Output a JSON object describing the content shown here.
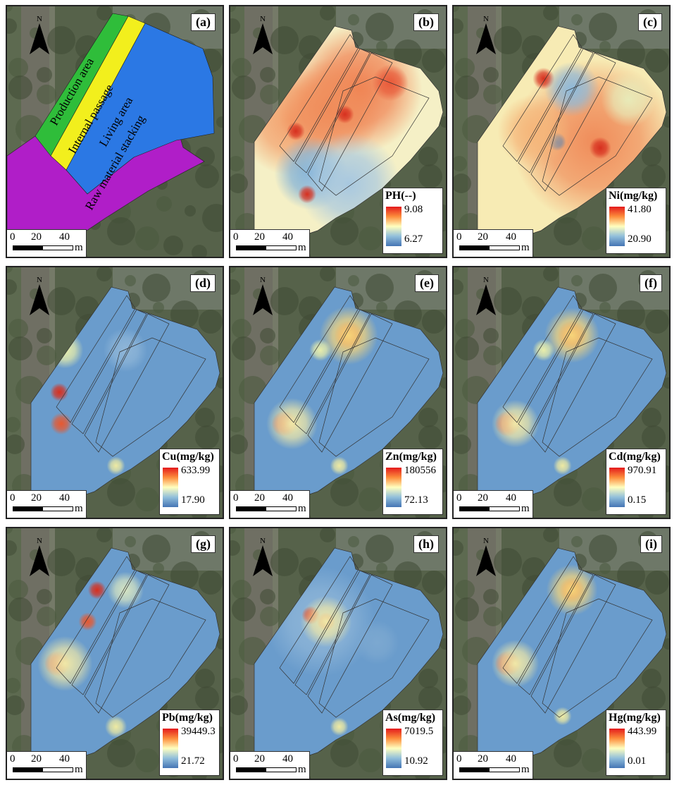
{
  "north_letter": "N",
  "scale": {
    "ticks": [
      "0",
      "20",
      "40"
    ],
    "unit": "m"
  },
  "zones_panel": {
    "label": "(a)",
    "zones": [
      {
        "name": "Production area",
        "color": "#2fbd3a"
      },
      {
        "name": "Internal passage",
        "color": "#f2ef1d"
      },
      {
        "name": "Living area",
        "color": "#2b78e4"
      },
      {
        "name": "Raw material stacking",
        "color": "#b01ec8"
      }
    ]
  },
  "panels": [
    {
      "label": "(b)",
      "variable": "PH(--)",
      "max": "9.08",
      "min": "6.27",
      "base": "#f5f0c6",
      "hotspots": [
        [
          0.55,
          0.3,
          0.35,
          "#f07f50"
        ],
        [
          0.2,
          0.45,
          0.3,
          "#f3a06c"
        ],
        [
          0.4,
          0.4,
          0.28,
          "#f08c5a"
        ],
        [
          0.3,
          0.7,
          0.2,
          "#7fb0d8"
        ],
        [
          0.5,
          0.75,
          0.28,
          "#a8c8e0"
        ],
        [
          0.22,
          0.5,
          0.05,
          "#d7301f"
        ],
        [
          0.48,
          0.42,
          0.05,
          "#d7301f"
        ],
        [
          0.28,
          0.8,
          0.05,
          "#d7301f"
        ],
        [
          0.72,
          0.27,
          0.1,
          "#e85a3a"
        ]
      ]
    },
    {
      "label": "(c)",
      "variable": "Ni(mg/kg)",
      "max": "41.80",
      "min": "20.90",
      "base": "#f7ebb4",
      "hotspots": [
        [
          0.62,
          0.55,
          0.45,
          "#f08c5a"
        ],
        [
          0.65,
          0.58,
          0.06,
          "#d7301f"
        ],
        [
          0.35,
          0.25,
          0.06,
          "#d7301f"
        ],
        [
          0.5,
          0.3,
          0.15,
          "#8ebadb"
        ],
        [
          0.42,
          0.55,
          0.05,
          "#4575b4"
        ],
        [
          0.3,
          0.5,
          0.2,
          "#f5b67a"
        ],
        [
          0.8,
          0.35,
          0.15,
          "#e8eab8"
        ]
      ]
    },
    {
      "label": "(d)",
      "variable": "Cu(mg/kg)",
      "max": "633.99",
      "min": "17.90",
      "base": "#6a9ccc",
      "hotspots": [
        [
          0.18,
          0.3,
          0.1,
          "#e9eeaa"
        ],
        [
          0.15,
          0.5,
          0.05,
          "#d7301f"
        ],
        [
          0.16,
          0.65,
          0.06,
          "#e8582f"
        ],
        [
          0.5,
          0.3,
          0.12,
          "#8fb6d8"
        ],
        [
          0.45,
          0.85,
          0.05,
          "#eeeaa2"
        ]
      ]
    },
    {
      "label": "(e)",
      "variable": "Zn(mg/kg)",
      "max": "180556",
      "min": "72.13",
      "base": "#6a9ccc",
      "hotspots": [
        [
          0.5,
          0.23,
          0.08,
          "#d7301f"
        ],
        [
          0.5,
          0.23,
          0.16,
          "#f6d57a"
        ],
        [
          0.16,
          0.65,
          0.07,
          "#d7301f"
        ],
        [
          0.2,
          0.65,
          0.14,
          "#f0e8a8"
        ],
        [
          0.45,
          0.85,
          0.05,
          "#eeeaa2"
        ],
        [
          0.35,
          0.3,
          0.06,
          "#e9eeaa"
        ]
      ]
    },
    {
      "label": "(f)",
      "variable": "Cd(mg/kg)",
      "max": "970.91",
      "min": "0.15",
      "base": "#6a9ccc",
      "hotspots": [
        [
          0.5,
          0.23,
          0.08,
          "#d7301f"
        ],
        [
          0.5,
          0.23,
          0.15,
          "#f6d57a"
        ],
        [
          0.16,
          0.65,
          0.07,
          "#d7301f"
        ],
        [
          0.2,
          0.65,
          0.13,
          "#f0e8a8"
        ],
        [
          0.45,
          0.85,
          0.05,
          "#eeeaa2"
        ],
        [
          0.35,
          0.3,
          0.06,
          "#e9eeaa"
        ]
      ]
    },
    {
      "label": "(g)",
      "variable": "Pb(mg/kg)",
      "max": "39449.3",
      "min": "21.72",
      "base": "#6a9ccc",
      "hotspots": [
        [
          0.35,
          0.2,
          0.05,
          "#d7301f"
        ],
        [
          0.3,
          0.35,
          0.05,
          "#e8582f"
        ],
        [
          0.14,
          0.55,
          0.07,
          "#d7301f"
        ],
        [
          0.18,
          0.55,
          0.15,
          "#f0e8a8"
        ],
        [
          0.5,
          0.2,
          0.1,
          "#d6e4c2"
        ],
        [
          0.45,
          0.85,
          0.06,
          "#eeeaa2"
        ]
      ]
    },
    {
      "label": "(h)",
      "variable": "As(mg/kg)",
      "max": "7019.5",
      "min": "10.92",
      "base": "#6a9ccc",
      "hotspots": [
        [
          0.35,
          0.35,
          0.3,
          "#8fb6d8"
        ],
        [
          0.3,
          0.32,
          0.05,
          "#d7301f"
        ],
        [
          0.38,
          0.35,
          0.05,
          "#d7301f"
        ],
        [
          0.38,
          0.35,
          0.14,
          "#f0e8a8"
        ],
        [
          0.45,
          0.85,
          0.05,
          "#eeeaa2"
        ],
        [
          0.65,
          0.45,
          0.12,
          "#7ca8d0"
        ]
      ]
    },
    {
      "label": "(i)",
      "variable": "Hg(mg/kg)",
      "max": "443.99",
      "min": "0.01",
      "base": "#6a9ccc",
      "hotspots": [
        [
          0.5,
          0.2,
          0.07,
          "#d7301f"
        ],
        [
          0.5,
          0.2,
          0.14,
          "#f6d57a"
        ],
        [
          0.16,
          0.55,
          0.07,
          "#d7301f"
        ],
        [
          0.2,
          0.55,
          0.13,
          "#f0e8a8"
        ],
        [
          0.45,
          0.8,
          0.05,
          "#eeeaa2"
        ]
      ]
    }
  ]
}
